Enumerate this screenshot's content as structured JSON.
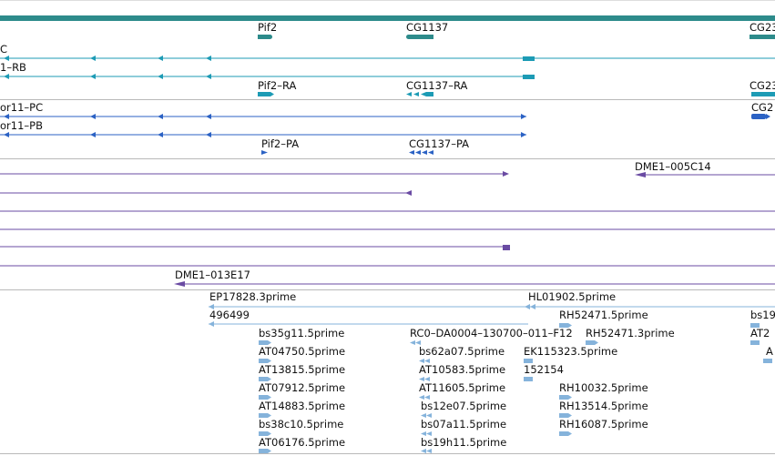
{
  "colors": {
    "gene": "#2d8b8b",
    "mrna": "#1d9bb5",
    "cds": "#2b62c4",
    "cdna": "#6a4ba3",
    "est": "#85b3db",
    "separator": "#b9b9b9"
  },
  "tracks": {
    "gene_labels": [
      "Pif2",
      "CG1137",
      "CG23"
    ],
    "mrna_labels": [
      "C",
      "1–RB",
      "Pif2–RA",
      "CG1137–RA",
      "CG23"
    ],
    "cds_labels": [
      "or11–PC",
      "or11–PB",
      "Pif2–PA",
      "CG1137–PA",
      "CG2"
    ],
    "cdna_labels": [
      "DME1–005C14",
      "DME1–013E17"
    ],
    "est_labels": [
      "EP17828.3prime",
      "HL01902.5prime",
      "496499",
      "RH52471.5prime",
      "bs19",
      "bs35g11.5prime",
      "RC0–DA0004–130700–011–F12",
      "RH52471.3prime",
      "AT2",
      "AT04750.5prime",
      "bs62a07.5prime",
      "EK115323.5prime",
      "A",
      "AT13815.5prime",
      "AT10583.5prime",
      "152154",
      "AT07912.5prime",
      "AT11605.5prime",
      "RH10032.5prime",
      "AT14883.5prime",
      "bs12e07.5prime",
      "RH13514.5prime",
      "bs38c10.5prime",
      "bs07a11.5prime",
      "RH16087.5prime",
      "AT06176.5prime",
      "bs19h11.5prime"
    ]
  }
}
